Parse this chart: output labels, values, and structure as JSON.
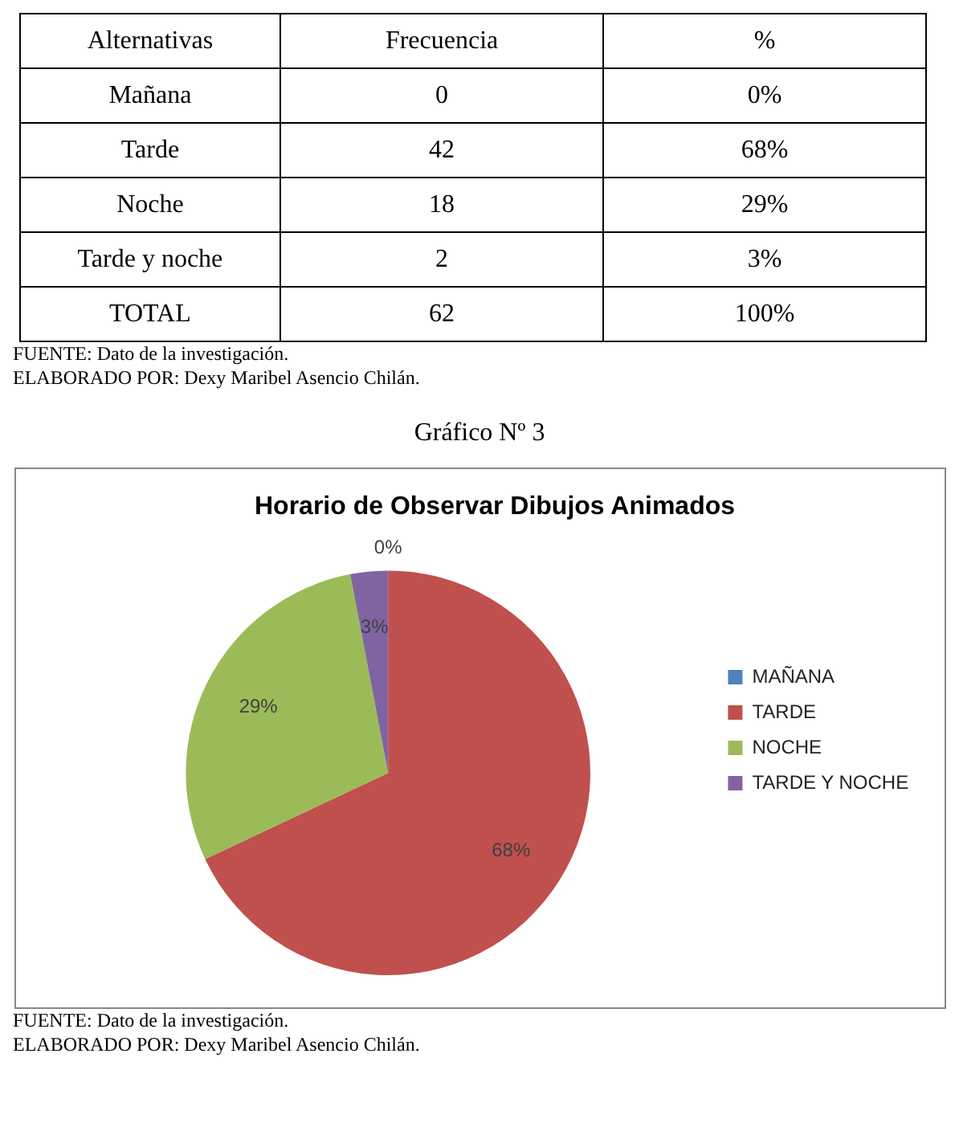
{
  "chart_data": [
    {
      "type": "other",
      "annotations": [
        "Alternativas",
        "Frecuencia",
        "%",
        "Mañana",
        "0",
        "0%",
        "Tarde",
        "42",
        "68%",
        "Noche",
        "18",
        "29%",
        "Tarde y noche",
        "2",
        "3%",
        "TOTAL",
        "62",
        "100%",
        "FUENTE: Dato de la investigación.",
        "ELABORADO POR: Dexy Maribel Asencio Chilán.",
        "Gráfico Nº 3"
      ]
    },
    {
      "type": "pie",
      "title": "Horario de Observar Dibujos Animados",
      "categories": [
        "MAÑANA",
        "TARDE",
        "NOCHE",
        "TARDE Y NOCHE"
      ],
      "values": [
        0,
        68,
        29,
        3
      ],
      "colors": [
        "#4f81bd",
        "#c0504d",
        "#9bbb59",
        "#8064a2"
      ],
      "value_labels": [
        "0%",
        "68%",
        "29%",
        "3%"
      ],
      "legend": "right",
      "annotations": [
        "FUENTE: Dato de la investigación.",
        "ELABORADO POR: Dexy Maribel Asencio Chilán."
      ]
    }
  ]
}
